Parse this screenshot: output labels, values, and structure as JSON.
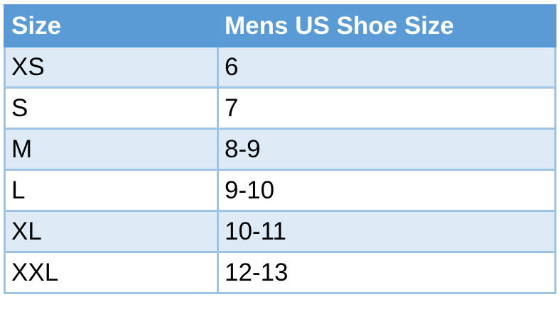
{
  "table": {
    "headers": [
      "Size",
      "Mens US Shoe Size"
    ],
    "rows": [
      [
        "XS",
        "6"
      ],
      [
        "S",
        "7"
      ],
      [
        "M",
        "8-9"
      ],
      [
        "L",
        "9-10"
      ],
      [
        "XL",
        "10-11"
      ],
      [
        "XXL",
        "12-13"
      ]
    ]
  },
  "colors": {
    "header": "#5b9bd5",
    "band": "#ddebf7",
    "border": "#9dc3e6"
  }
}
